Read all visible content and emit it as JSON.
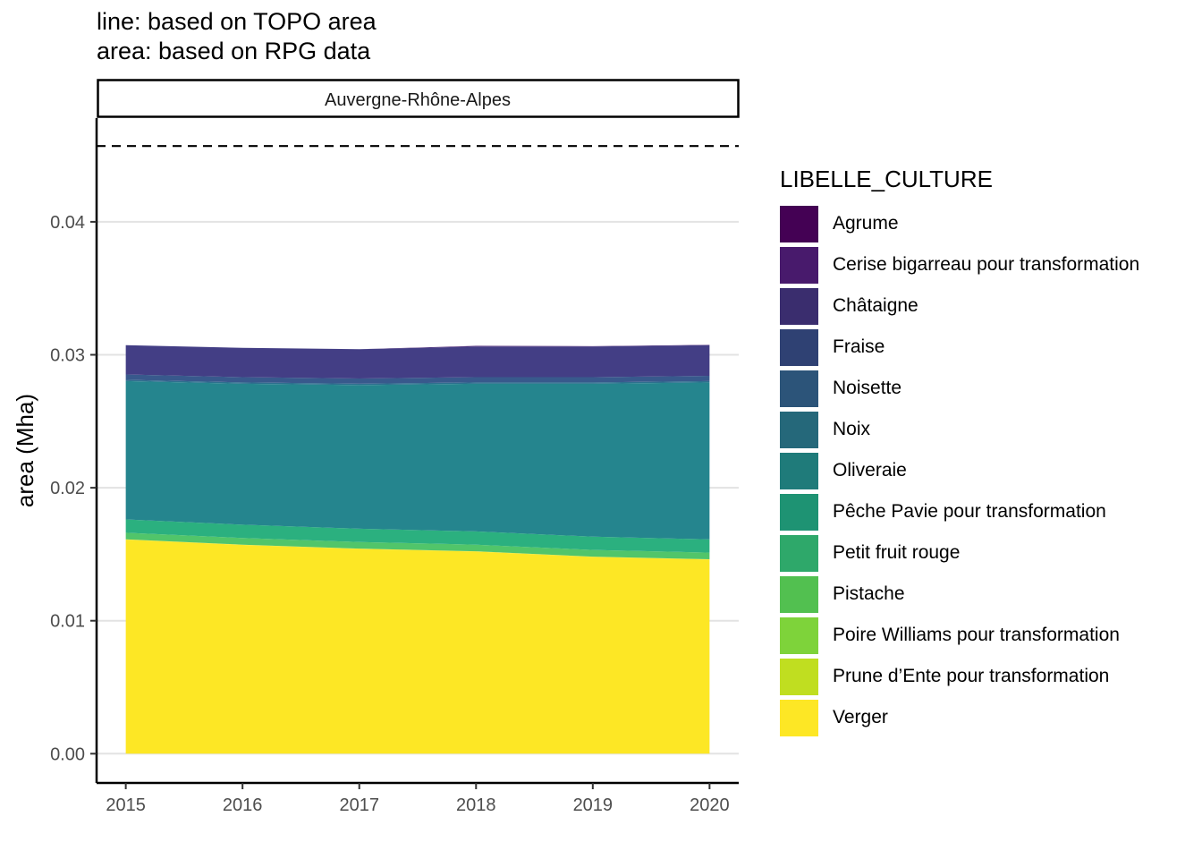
{
  "titles": [
    "line: based on TOPO area",
    "area: based on RPG data"
  ],
  "chart_data": {
    "type": "area",
    "facet_label": "Auvergne-Rhône-Alpes",
    "ylabel": "area (Mha)",
    "xlabel": "",
    "x": [
      2015,
      2016,
      2017,
      2018,
      2019,
      2020
    ],
    "xlim": [
      2014.75,
      2020.25
    ],
    "ylim": [
      -0.0022,
      0.0478
    ],
    "y_ticks": [
      "0.00",
      "0.01",
      "0.02",
      "0.03",
      "0.04"
    ],
    "y_tick_values": [
      0,
      0.01,
      0.02,
      0.03,
      0.04
    ],
    "reference_line": {
      "style": "dashed",
      "value": 0.0457
    },
    "grid": "horizontal major",
    "legend_position": "right",
    "legend_title": "LIBELLE_CULTURE",
    "series": [
      {
        "name": "Agrume",
        "color": "#440154",
        "values": [
          0,
          0,
          0,
          0,
          0,
          0
        ]
      },
      {
        "name": "Cerise bigarreau pour transformation",
        "color": "#482173",
        "values": [
          0,
          0,
          0,
          5e-05,
          3e-05,
          3e-05
        ]
      },
      {
        "name": "Châtaigne",
        "color": "#433E85",
        "values": [
          0.0022,
          0.0022,
          0.0022,
          0.0023,
          0.0023,
          0.0023
        ]
      },
      {
        "name": "Fraise",
        "color": "#38598C",
        "values": [
          0.0004,
          0.0004,
          0.0004,
          0.0004,
          0.0004,
          0.0004
        ]
      },
      {
        "name": "Noisette",
        "color": "#2D708E",
        "values": [
          0.0001,
          0.0001,
          0.0001,
          0.0001,
          0.0001,
          0.0001
        ]
      },
      {
        "name": "Noix",
        "color": "#25858E",
        "values": [
          0.0104,
          0.0106,
          0.0108,
          0.0111,
          0.0115,
          0.0118
        ]
      },
      {
        "name": "Oliveraie",
        "color": "#1E9B8A",
        "values": [
          0,
          0,
          0,
          0,
          0,
          0
        ]
      },
      {
        "name": "Pêche Pavie pour transformation",
        "color": "#2BB07F",
        "values": [
          0.001,
          0.001,
          0.001,
          0.001,
          0.001,
          0.001
        ]
      },
      {
        "name": "Petit fruit rouge",
        "color": "#51C56A",
        "values": [
          0.0005,
          0.0005,
          0.0005,
          0.0005,
          0.0005,
          0.0005
        ]
      },
      {
        "name": "Pistache",
        "color": "#85D54A",
        "values": [
          0,
          0,
          0,
          0,
          0,
          0
        ]
      },
      {
        "name": "Poire Williams pour transformation",
        "color": "#C2DF23",
        "values": [
          0,
          0,
          0,
          0,
          0,
          0
        ]
      },
      {
        "name": "Prune d’Ente pour transformation",
        "color": "#FDE725",
        "values": [
          2e-05,
          2e-05,
          2e-05,
          2e-05,
          2e-05,
          2e-05
        ]
      },
      {
        "name": "Verger",
        "color": "#FDE725",
        "values": [
          0.0161,
          0.0157,
          0.0154,
          0.0152,
          0.0148,
          0.0146
        ]
      }
    ]
  },
  "legend_colors": [
    "#440154",
    "#481A6C",
    "#3A2D6E",
    "#2F4173",
    "#2C5479",
    "#25687A",
    "#1F7B7A",
    "#1E9373",
    "#2EA86A",
    "#52C050",
    "#7ED33A",
    "#C0DE20",
    "#FDE725"
  ]
}
